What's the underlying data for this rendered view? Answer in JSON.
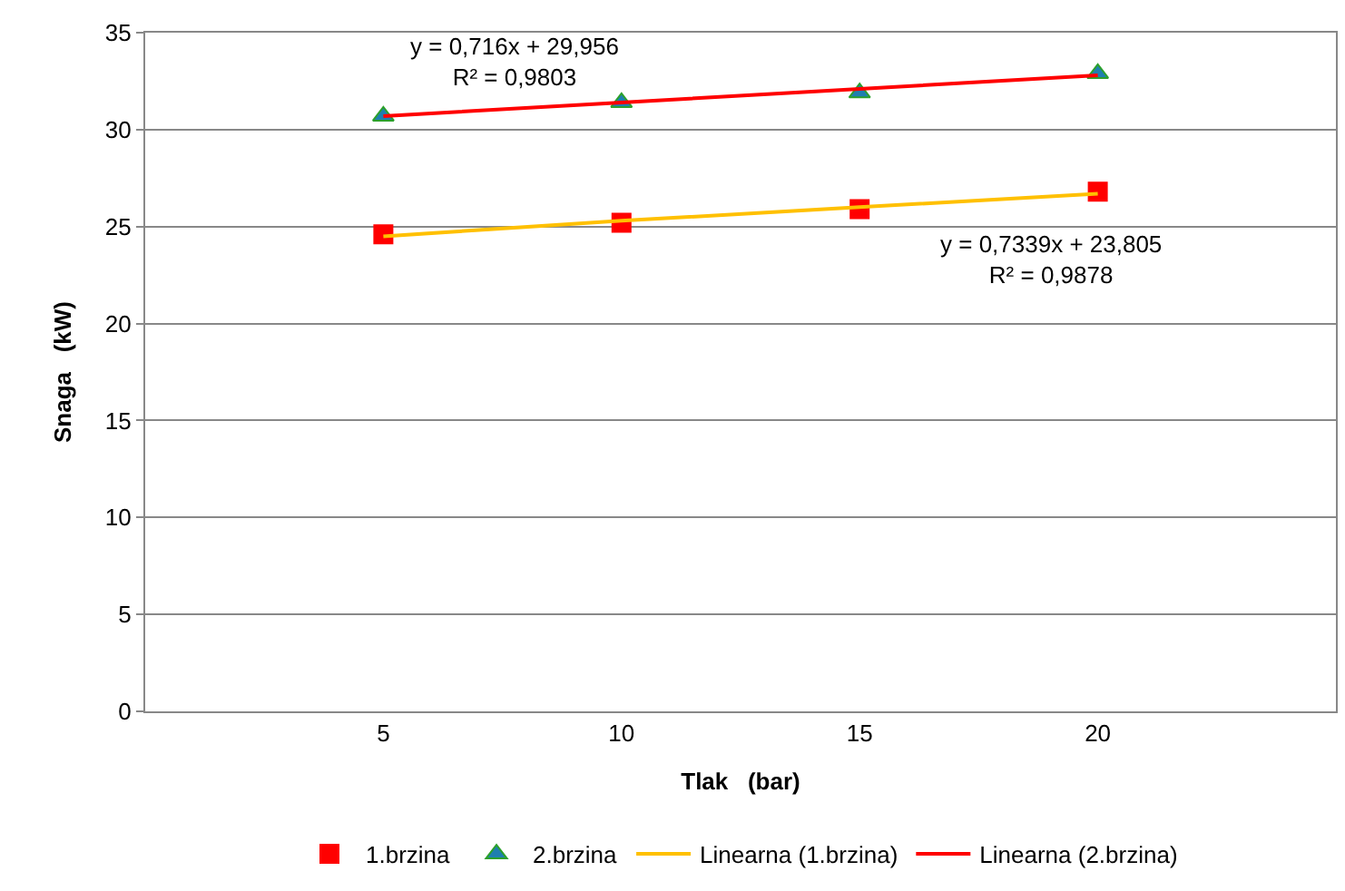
{
  "chart_data": {
    "type": "scatter",
    "xlabel": "Tlak   (bar)",
    "ylabel": "Snaga   (kW)",
    "categories": [
      "5",
      "10",
      "15",
      "20"
    ],
    "series": [
      {
        "name": "1.brzina",
        "color": "#ff0000",
        "marker": "square",
        "values": [
          24.6,
          25.2,
          25.9,
          26.8
        ]
      },
      {
        "name": "2.brzina",
        "color": "#1f7fb0",
        "marker": "triangle",
        "values": [
          30.7,
          31.4,
          31.9,
          32.9
        ]
      },
      {
        "name": "Linearna (1.brzina)",
        "type": "line",
        "color": "#ffc000",
        "marker": "none",
        "values": [
          24.5,
          25.3,
          26.0,
          26.7
        ]
      },
      {
        "name": "Linearna (2.brzina)",
        "type": "line",
        "color": "#ff0000",
        "marker": "none",
        "values": [
          30.7,
          31.4,
          32.1,
          32.8
        ]
      }
    ],
    "annotations": [
      "y = 0,716x + 29,956\nR² = 0,9803",
      "y = 0,7339x + 23,805\nR² = 0,9878"
    ],
    "ylim": [
      0,
      35
    ],
    "yticks": [
      0,
      5,
      10,
      15,
      20,
      25,
      30,
      35
    ],
    "grid": "y",
    "legend": "bottom"
  }
}
